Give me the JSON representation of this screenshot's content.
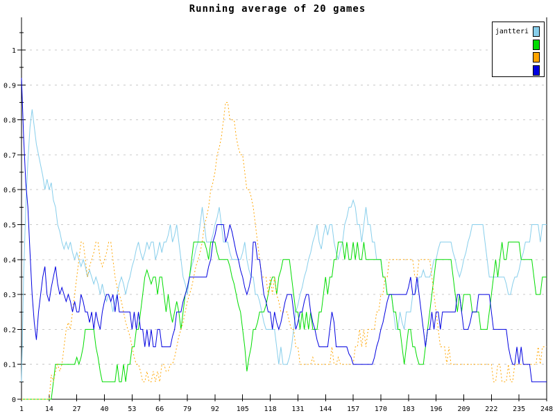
{
  "chart_data": {
    "type": "line",
    "title": "Running average of 20 games",
    "xlabel": "",
    "ylabel": "",
    "xlim": [
      1,
      248
    ],
    "ylim": [
      0,
      1.09
    ],
    "grid": "horizontal-dotted",
    "grid_color": "#c8c8c8",
    "axis_color": "#000000",
    "legend_position": "top-right",
    "x_ticks": [
      1,
      14,
      27,
      40,
      53,
      66,
      79,
      92,
      105,
      118,
      131,
      144,
      157,
      170,
      183,
      196,
      209,
      222,
      235,
      248
    ],
    "y_ticks": [
      {
        "value": 0,
        "label": "0"
      },
      {
        "value": 0.1,
        "label": "0.1"
      },
      {
        "value": 0.2,
        "label": "0.2"
      },
      {
        "value": 0.3,
        "label": "0.3"
      },
      {
        "value": 0.4,
        "label": "0.4"
      },
      {
        "value": 0.5,
        "label": "0.5"
      },
      {
        "value": 0.6,
        "label": "0.6"
      },
      {
        "value": 0.7,
        "label": "0.7"
      },
      {
        "value": 0.8,
        "label": "0.8"
      },
      {
        "value": 0.9,
        "label": "0.9"
      },
      {
        "value": 1,
        "label": "1"
      }
    ],
    "x_start": 1,
    "series": [
      {
        "name": "jantteri",
        "color": "#87CEEB",
        "style": "solid",
        "values": [
          0.05,
          0.35,
          0.55,
          0.68,
          0.78,
          0.83,
          0.78,
          0.73,
          0.7,
          0.67,
          0.64,
          0.6,
          0.63,
          0.6,
          0.62,
          0.57,
          0.55,
          0.5,
          0.48,
          0.45,
          0.43,
          0.45,
          0.43,
          0.45,
          0.42,
          0.4,
          0.42,
          0.4,
          0.38,
          0.4,
          0.38,
          0.35,
          0.37,
          0.35,
          0.33,
          0.35,
          0.33,
          0.3,
          0.33,
          0.3,
          0.28,
          0.3,
          0.28,
          0.25,
          0.28,
          0.3,
          0.33,
          0.35,
          0.33,
          0.3,
          0.33,
          0.35,
          0.38,
          0.4,
          0.43,
          0.45,
          0.42,
          0.4,
          0.42,
          0.45,
          0.43,
          0.45,
          0.45,
          0.4,
          0.42,
          0.45,
          0.42,
          0.45,
          0.45,
          0.47,
          0.5,
          0.45,
          0.47,
          0.5,
          0.45,
          0.4,
          0.35,
          0.33,
          0.3,
          0.35,
          0.38,
          0.4,
          0.43,
          0.45,
          0.5,
          0.55,
          0.5,
          0.45,
          0.45,
          0.45,
          0.47,
          0.5,
          0.52,
          0.55,
          0.5,
          0.45,
          0.45,
          0.45,
          0.42,
          0.4,
          0.4,
          0.4,
          0.4,
          0.4,
          0.42,
          0.45,
          0.4,
          0.37,
          0.35,
          0.35,
          0.3,
          0.3,
          0.28,
          0.25,
          0.22,
          0.2,
          0.2,
          0.2,
          0.2,
          0.2,
          0.15,
          0.1,
          0.15,
          0.1,
          0.1,
          0.1,
          0.12,
          0.15,
          0.2,
          0.25,
          0.27,
          0.3,
          0.32,
          0.35,
          0.37,
          0.4,
          0.42,
          0.45,
          0.47,
          0.5,
          0.45,
          0.43,
          0.47,
          0.5,
          0.47,
          0.5,
          0.5,
          0.45,
          0.42,
          0.4,
          0.43,
          0.45,
          0.5,
          0.52,
          0.55,
          0.55,
          0.57,
          0.55,
          0.5,
          0.5,
          0.45,
          0.5,
          0.55,
          0.5,
          0.5,
          0.45,
          0.45,
          0.4,
          0.4,
          0.4,
          0.35,
          0.35,
          0.3,
          0.3,
          0.3,
          0.25,
          0.2,
          0.2,
          0.25,
          0.22,
          0.2,
          0.25,
          0.25,
          0.25,
          0.3,
          0.3,
          0.32,
          0.35,
          0.35,
          0.37,
          0.35,
          0.35,
          0.35,
          0.37,
          0.4,
          0.4,
          0.43,
          0.45,
          0.45,
          0.45,
          0.45,
          0.45,
          0.45,
          0.42,
          0.4,
          0.37,
          0.35,
          0.37,
          0.4,
          0.42,
          0.45,
          0.47,
          0.5,
          0.5,
          0.5,
          0.5,
          0.5,
          0.5,
          0.45,
          0.4,
          0.35,
          0.35,
          0.35,
          0.35,
          0.35,
          0.35,
          0.35,
          0.35,
          0.33,
          0.3,
          0.3,
          0.33,
          0.35,
          0.35,
          0.37,
          0.4,
          0.42,
          0.45,
          0.45,
          0.45,
          0.5,
          0.5,
          0.5,
          0.5,
          0.45,
          0.5,
          0.5,
          0.5
        ]
      },
      {
        "name": "",
        "color": "#00DC00",
        "style": "solid",
        "values": [
          0,
          0,
          0,
          0,
          0,
          0,
          0,
          0,
          0,
          0,
          0,
          0,
          0,
          0,
          0,
          0.05,
          0.1,
          0.1,
          0.1,
          0.1,
          0.1,
          0.1,
          0.1,
          0.1,
          0.1,
          0.1,
          0.12,
          0.1,
          0.12,
          0.15,
          0.2,
          0.2,
          0.2,
          0.2,
          0.2,
          0.15,
          0.12,
          0.08,
          0.05,
          0.05,
          0.05,
          0.05,
          0.05,
          0.05,
          0.05,
          0.1,
          0.05,
          0.05,
          0.1,
          0.05,
          0.1,
          0.1,
          0.15,
          0.15,
          0.2,
          0.2,
          0.25,
          0.3,
          0.35,
          0.37,
          0.35,
          0.33,
          0.35,
          0.35,
          0.3,
          0.35,
          0.35,
          0.3,
          0.25,
          0.3,
          0.25,
          0.22,
          0.25,
          0.28,
          0.25,
          0.2,
          0.25,
          0.3,
          0.32,
          0.35,
          0.4,
          0.45,
          0.45,
          0.45,
          0.45,
          0.45,
          0.45,
          0.43,
          0.4,
          0.45,
          0.45,
          0.45,
          0.42,
          0.4,
          0.4,
          0.4,
          0.4,
          0.4,
          0.38,
          0.35,
          0.33,
          0.3,
          0.27,
          0.25,
          0.2,
          0.15,
          0.08,
          0.12,
          0.15,
          0.2,
          0.2,
          0.22,
          0.25,
          0.25,
          0.25,
          0.27,
          0.3,
          0.33,
          0.35,
          0.35,
          0.3,
          0.35,
          0.37,
          0.4,
          0.4,
          0.4,
          0.4,
          0.35,
          0.3,
          0.25,
          0.25,
          0.2,
          0.25,
          0.2,
          0.25,
          0.2,
          0.25,
          0.2,
          0.2,
          0.2,
          0.25,
          0.25,
          0.3,
          0.35,
          0.3,
          0.35,
          0.35,
          0.4,
          0.4,
          0.45,
          0.45,
          0.45,
          0.4,
          0.45,
          0.4,
          0.4,
          0.45,
          0.4,
          0.45,
          0.4,
          0.4,
          0.45,
          0.4,
          0.4,
          0.4,
          0.4,
          0.4,
          0.4,
          0.4,
          0.4,
          0.35,
          0.35,
          0.3,
          0.3,
          0.3,
          0.25,
          0.25,
          0.2,
          0.2,
          0.15,
          0.1,
          0.15,
          0.2,
          0.2,
          0.15,
          0.15,
          0.12,
          0.1,
          0.1,
          0.1,
          0.15,
          0.2,
          0.25,
          0.3,
          0.35,
          0.4,
          0.4,
          0.4,
          0.4,
          0.4,
          0.4,
          0.4,
          0.4,
          0.35,
          0.3,
          0.25,
          0.3,
          0.25,
          0.3,
          0.3,
          0.3,
          0.3,
          0.25,
          0.25,
          0.25,
          0.25,
          0.2,
          0.2,
          0.2,
          0.2,
          0.25,
          0.3,
          0.35,
          0.4,
          0.35,
          0.4,
          0.45,
          0.4,
          0.4,
          0.45,
          0.45,
          0.45,
          0.45,
          0.45,
          0.45,
          0.4,
          0.4,
          0.4,
          0.4,
          0.4,
          0.4,
          0.35,
          0.3,
          0.3,
          0.3,
          0.35,
          0.35,
          0.35
        ]
      },
      {
        "name": "",
        "color": "#FFA500",
        "style": "dotted",
        "values": [
          0,
          0,
          0,
          0,
          0,
          0,
          0,
          0,
          0,
          0,
          0,
          0,
          0,
          0,
          0.07,
          0.05,
          0.08,
          0.1,
          0.08,
          0.1,
          0.15,
          0.2,
          0.22,
          0.2,
          0.25,
          0.3,
          0.35,
          0.4,
          0.45,
          0.45,
          0.4,
          0.35,
          0.38,
          0.4,
          0.42,
          0.45,
          0.45,
          0.4,
          0.38,
          0.4,
          0.42,
          0.45,
          0.45,
          0.4,
          0.35,
          0.32,
          0.3,
          0.28,
          0.25,
          0.22,
          0.2,
          0.18,
          0.15,
          0.12,
          0.1,
          0.1,
          0.08,
          0.05,
          0.05,
          0.08,
          0.05,
          0.05,
          0.08,
          0.05,
          0.08,
          0.05,
          0.1,
          0.1,
          0.08,
          0.08,
          0.1,
          0.1,
          0.12,
          0.15,
          0.18,
          0.2,
          0.22,
          0.25,
          0.28,
          0.3,
          0.32,
          0.35,
          0.38,
          0.4,
          0.42,
          0.45,
          0.5,
          0.52,
          0.55,
          0.6,
          0.62,
          0.65,
          0.7,
          0.72,
          0.75,
          0.8,
          0.85,
          0.85,
          0.8,
          0.8,
          0.8,
          0.75,
          0.72,
          0.7,
          0.7,
          0.65,
          0.6,
          0.6,
          0.58,
          0.55,
          0.5,
          0.45,
          0.4,
          0.35,
          0.35,
          0.35,
          0.3,
          0.35,
          0.3,
          0.35,
          0.3,
          0.28,
          0.25,
          0.25,
          0.25,
          0.25,
          0.22,
          0.2,
          0.2,
          0.15,
          0.15,
          0.1,
          0.1,
          0.1,
          0.1,
          0.1,
          0.1,
          0.12,
          0.1,
          0.1,
          0.1,
          0.1,
          0.1,
          0.1,
          0.1,
          0.1,
          0.15,
          0.1,
          0.1,
          0.12,
          0.1,
          0.1,
          0.1,
          0.1,
          0.1,
          0.1,
          0.1,
          0.15,
          0.15,
          0.2,
          0.15,
          0.2,
          0.15,
          0.2,
          0.2,
          0.2,
          0.2,
          0.25,
          0.25,
          0.3,
          0.3,
          0.35,
          0.35,
          0.4,
          0.4,
          0.4,
          0.4,
          0.4,
          0.4,
          0.4,
          0.4,
          0.4,
          0.4,
          0.4,
          0.4,
          0.35,
          0.35,
          0.4,
          0.4,
          0.4,
          0.4,
          0.4,
          0.4,
          0.35,
          0.3,
          0.25,
          0.2,
          0.15,
          0.15,
          0.15,
          0.1,
          0.15,
          0.1,
          0.1,
          0.1,
          0.1,
          0.1,
          0.1,
          0.1,
          0.1,
          0.1,
          0.1,
          0.1,
          0.1,
          0.1,
          0.1,
          0.1,
          0.1,
          0.1,
          0.1,
          0.1,
          0.1,
          0.05,
          0.05,
          0.1,
          0.1,
          0.05,
          0.05,
          0.05,
          0.1,
          0.05,
          0.05,
          0.1,
          0.1,
          0.1,
          0.1,
          0.1,
          0.1,
          0.1,
          0.1,
          0.1,
          0.1,
          0.1,
          0.15,
          0.1,
          0.15,
          0.15,
          0.15
        ]
      },
      {
        "name": "",
        "color": "#0000E0",
        "style": "solid",
        "values": [
          0.92,
          0.75,
          0.62,
          0.55,
          0.42,
          0.3,
          0.22,
          0.17,
          0.25,
          0.3,
          0.35,
          0.38,
          0.3,
          0.28,
          0.32,
          0.35,
          0.38,
          0.33,
          0.3,
          0.32,
          0.3,
          0.28,
          0.3,
          0.28,
          0.25,
          0.28,
          0.25,
          0.25,
          0.3,
          0.28,
          0.25,
          0.25,
          0.22,
          0.25,
          0.2,
          0.25,
          0.22,
          0.2,
          0.25,
          0.28,
          0.3,
          0.3,
          0.28,
          0.3,
          0.25,
          0.3,
          0.25,
          0.25,
          0.25,
          0.25,
          0.25,
          0.25,
          0.2,
          0.25,
          0.2,
          0.25,
          0.2,
          0.2,
          0.15,
          0.2,
          0.15,
          0.2,
          0.15,
          0.15,
          0.2,
          0.2,
          0.15,
          0.15,
          0.15,
          0.15,
          0.15,
          0.18,
          0.2,
          0.25,
          0.25,
          0.25,
          0.28,
          0.3,
          0.32,
          0.35,
          0.35,
          0.35,
          0.35,
          0.35,
          0.35,
          0.35,
          0.35,
          0.35,
          0.38,
          0.4,
          0.45,
          0.47,
          0.5,
          0.5,
          0.5,
          0.5,
          0.45,
          0.47,
          0.5,
          0.48,
          0.45,
          0.42,
          0.4,
          0.37,
          0.35,
          0.32,
          0.3,
          0.32,
          0.35,
          0.45,
          0.45,
          0.4,
          0.4,
          0.35,
          0.3,
          0.28,
          0.25,
          0.25,
          0.2,
          0.25,
          0.22,
          0.2,
          0.22,
          0.25,
          0.28,
          0.3,
          0.3,
          0.3,
          0.25,
          0.2,
          0.22,
          0.25,
          0.25,
          0.28,
          0.3,
          0.3,
          0.25,
          0.22,
          0.2,
          0.17,
          0.15,
          0.15,
          0.15,
          0.15,
          0.15,
          0.2,
          0.25,
          0.22,
          0.15,
          0.15,
          0.15,
          0.15,
          0.15,
          0.15,
          0.13,
          0.12,
          0.1,
          0.1,
          0.1,
          0.1,
          0.1,
          0.1,
          0.1,
          0.1,
          0.1,
          0.1,
          0.12,
          0.15,
          0.17,
          0.2,
          0.22,
          0.25,
          0.28,
          0.3,
          0.3,
          0.3,
          0.3,
          0.3,
          0.3,
          0.3,
          0.3,
          0.3,
          0.32,
          0.35,
          0.3,
          0.3,
          0.35,
          0.3,
          0.25,
          0.2,
          0.15,
          0.2,
          0.2,
          0.25,
          0.2,
          0.25,
          0.25,
          0.2,
          0.25,
          0.25,
          0.25,
          0.25,
          0.25,
          0.25,
          0.25,
          0.3,
          0.3,
          0.25,
          0.2,
          0.2,
          0.2,
          0.22,
          0.25,
          0.25,
          0.25,
          0.3,
          0.3,
          0.3,
          0.3,
          0.3,
          0.3,
          0.25,
          0.2,
          0.2,
          0.2,
          0.2,
          0.2,
          0.2,
          0.2,
          0.15,
          0.12,
          0.1,
          0.1,
          0.15,
          0.1,
          0.15,
          0.1,
          0.1,
          0.1,
          0.1,
          0.05,
          0.05,
          0.05,
          0.05,
          0.05,
          0.05,
          0.05,
          0.05
        ]
      }
    ]
  },
  "legend": {
    "entries": [
      {
        "label": "jantteri",
        "color": "#87CEEB"
      },
      {
        "label": "",
        "color": "#00DC00"
      },
      {
        "label": "",
        "color": "#FFA500"
      },
      {
        "label": "",
        "color": "#0000E0"
      }
    ]
  }
}
